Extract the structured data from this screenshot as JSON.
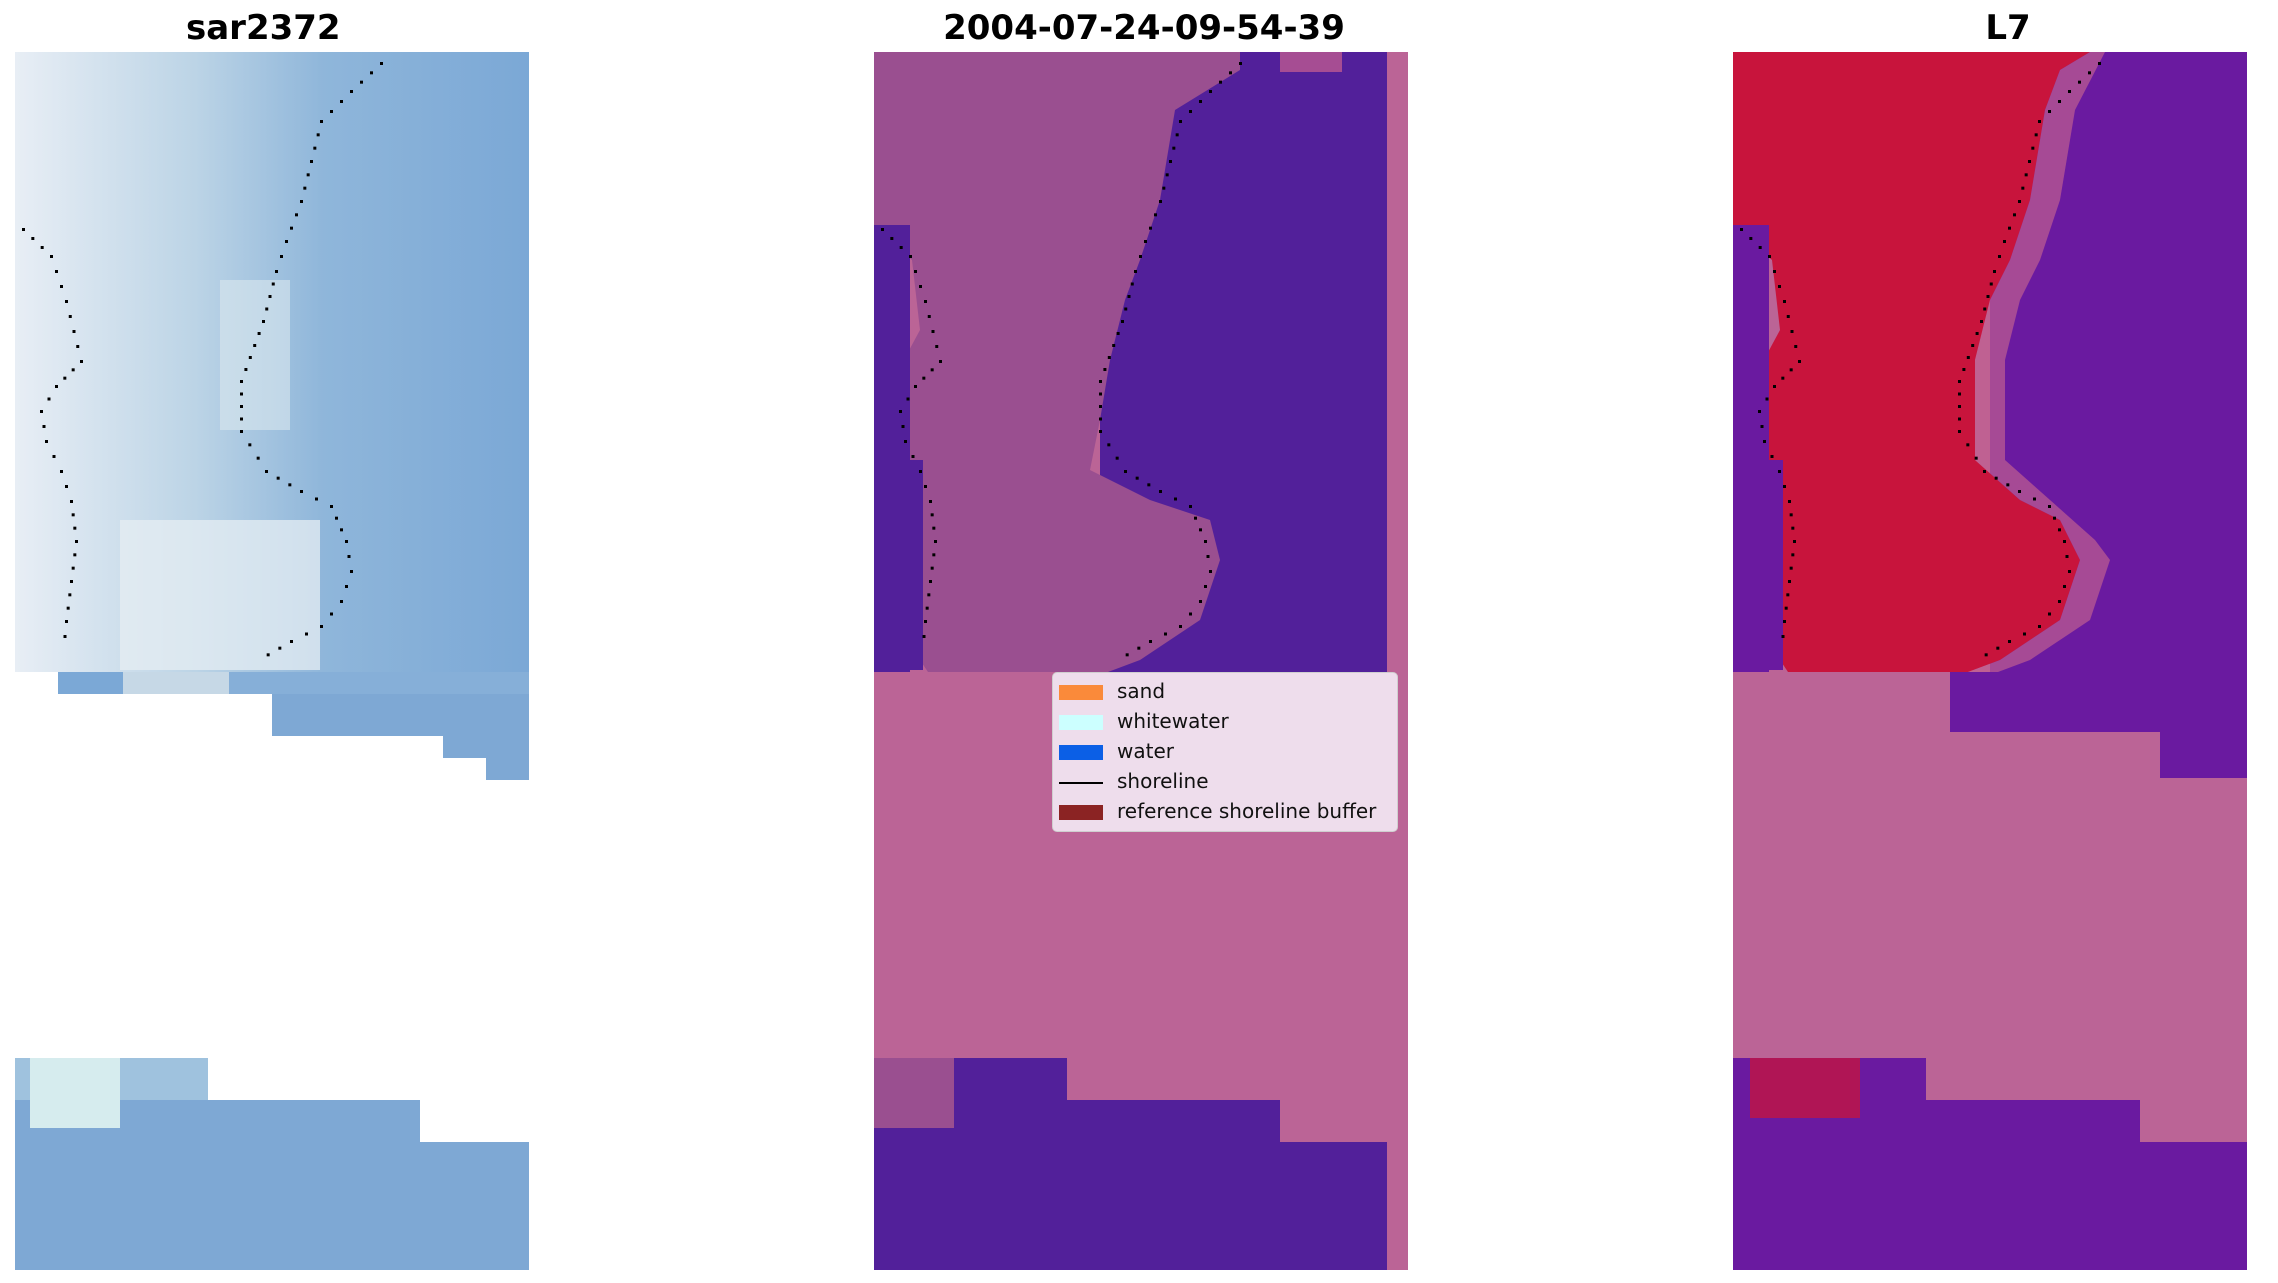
{
  "panels": [
    {
      "title": "sar2372"
    },
    {
      "title": "2004-07-24-09-54-39"
    },
    {
      "title": "L7"
    }
  ],
  "legend": {
    "items": [
      {
        "label": "sand",
        "color": "#fa8a3a",
        "kind": "patch"
      },
      {
        "label": "whitewater",
        "color": "#ccffff",
        "kind": "patch"
      },
      {
        "label": "water",
        "color": "#0b5fe6",
        "kind": "patch"
      },
      {
        "label": "shoreline",
        "color": "#000000",
        "kind": "line"
      },
      {
        "label": "reference shoreline buffer",
        "color": "#8b2323",
        "kind": "patch"
      }
    ]
  },
  "colors": {
    "sar_light": "#d4e4ee",
    "sar_blue": "#7ba8d6",
    "class_sand_tint": "#9a4f90",
    "class_water": "#52209a",
    "buffer_pink": "#bb6496",
    "l7_red": "#c8143c",
    "l7_purple": "#6a1aa0",
    "shoreline_dots": "#000000"
  }
}
